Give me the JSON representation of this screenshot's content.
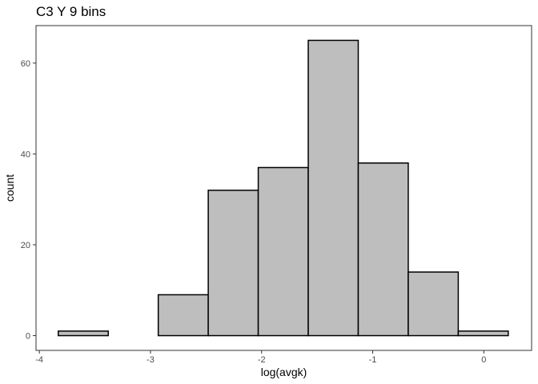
{
  "chart_data": {
    "type": "bar",
    "title": "C3 Y 9 bins",
    "xlabel": "log(avgk)",
    "ylabel": "count",
    "bin_width": 0.45,
    "bins": [
      {
        "x0": -3.83,
        "x1": -3.38,
        "count": 1
      },
      {
        "x0": -3.38,
        "x1": -2.93,
        "count": 0
      },
      {
        "x0": -2.93,
        "x1": -2.48,
        "count": 9
      },
      {
        "x0": -2.48,
        "x1": -2.03,
        "count": 32
      },
      {
        "x0": -2.03,
        "x1": -1.58,
        "count": 37
      },
      {
        "x0": -1.58,
        "x1": -1.13,
        "count": 65
      },
      {
        "x0": -1.13,
        "x1": -0.68,
        "count": 38
      },
      {
        "x0": -0.68,
        "x1": -0.23,
        "count": 14
      },
      {
        "x0": -0.23,
        "x1": 0.22,
        "count": 1
      }
    ],
    "xlim": [
      -4.03,
      0.43
    ],
    "ylim": [
      -3.25,
      68.25
    ],
    "x_ticks": [
      -4,
      -3,
      -2,
      -1,
      0
    ],
    "x_tick_labels": [
      "-4",
      "-3",
      "-2",
      "-1",
      "0"
    ],
    "y_ticks": [
      0,
      20,
      40,
      60
    ],
    "y_tick_labels": [
      "0",
      "20",
      "40",
      "60"
    ],
    "grid": false,
    "bar_fill": "#bebebe",
    "bar_stroke": "#000000",
    "panel_border": "#333333"
  }
}
